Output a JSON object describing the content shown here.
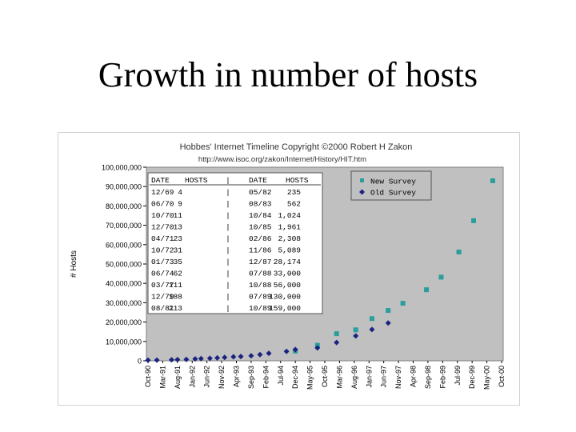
{
  "slide": {
    "title": "Growth in number of hosts"
  },
  "chart_data": {
    "type": "scatter",
    "title": "Hobbes' Internet Timeline Copyright ©2000 Robert H Zakon",
    "subtitle": "http://www.isoc.org/zakon/Internet/History/HIT.htm",
    "ylabel": "# Hosts",
    "xlabel": "",
    "ylim": [
      0,
      100000000
    ],
    "yticks": [
      "0",
      "10,000,000",
      "20,000,000",
      "30,000,000",
      "40,000,000",
      "50,000,000",
      "60,000,000",
      "70,000,000",
      "80,000,000",
      "90,000,000",
      "100,000,000"
    ],
    "ytick_values": [
      0,
      10000000,
      20000000,
      30000000,
      40000000,
      50000000,
      60000000,
      70000000,
      80000000,
      90000000,
      100000000
    ],
    "xticks": [
      "Oct-90",
      "Mar-91",
      "Aug-91",
      "Jan-92",
      "Jun-92",
      "Nov-92",
      "Apr-93",
      "Sep-93",
      "Feb-94",
      "Jul-94",
      "Dec-94",
      "May-95",
      "Oct-95",
      "Mar-96",
      "Aug-96",
      "Jan-97",
      "Jun-97",
      "Nov-97",
      "Apr-98",
      "Sep-98",
      "Feb-99",
      "Jul-99",
      "Dec-99",
      "May-00",
      "Oct-00"
    ],
    "legend": {
      "position": "top-right",
      "entries": [
        "New Survey",
        "Old Survey"
      ]
    },
    "grid": false,
    "series": [
      {
        "name": "New Survey",
        "marker": "square",
        "color": "#2a9d9d",
        "points": [
          {
            "x": 10.0,
            "y": 5000000
          },
          {
            "x": 11.5,
            "y": 8000000
          },
          {
            "x": 12.8,
            "y": 14000000
          },
          {
            "x": 14.1,
            "y": 16000000
          },
          {
            "x": 15.2,
            "y": 21800000
          },
          {
            "x": 16.3,
            "y": 26000000
          },
          {
            "x": 17.3,
            "y": 29700000
          },
          {
            "x": 18.9,
            "y": 36700000
          },
          {
            "x": 19.9,
            "y": 43200000
          },
          {
            "x": 21.1,
            "y": 56200000
          },
          {
            "x": 22.1,
            "y": 72400000
          },
          {
            "x": 23.4,
            "y": 93000000
          }
        ]
      },
      {
        "name": "Old Survey",
        "marker": "diamond",
        "color": "#1a237e",
        "points": [
          {
            "x": 0.0,
            "y": 313000
          },
          {
            "x": 0.6,
            "y": 376000
          },
          {
            "x": 1.6,
            "y": 535000
          },
          {
            "x": 2.0,
            "y": 617000
          },
          {
            "x": 2.6,
            "y": 727000
          },
          {
            "x": 3.2,
            "y": 992000
          },
          {
            "x": 3.6,
            "y": 1136000
          },
          {
            "x": 4.2,
            "y": 1313000
          },
          {
            "x": 4.7,
            "y": 1486000
          },
          {
            "x": 5.2,
            "y": 1776000
          },
          {
            "x": 5.8,
            "y": 2056000
          },
          {
            "x": 6.3,
            "y": 2217000
          },
          {
            "x": 7.0,
            "y": 2600000
          },
          {
            "x": 7.6,
            "y": 3200000
          },
          {
            "x": 8.2,
            "y": 3864000
          },
          {
            "x": 9.4,
            "y": 4852000
          },
          {
            "x": 10.0,
            "y": 5846000
          },
          {
            "x": 11.5,
            "y": 6642000
          },
          {
            "x": 12.8,
            "y": 9472000
          },
          {
            "x": 14.1,
            "y": 12881000
          },
          {
            "x": 15.2,
            "y": 16146000
          },
          {
            "x": 16.3,
            "y": 19540000
          }
        ]
      }
    ]
  },
  "inset_table": {
    "headers": [
      "DATE",
      "HOSTS",
      "|",
      "DATE",
      "HOSTS"
    ],
    "rows": [
      [
        "12/69",
        "4",
        "|",
        "05/82",
        "235"
      ],
      [
        "06/70",
        "9",
        "|",
        "08/83",
        "562"
      ],
      [
        "10/70",
        "11",
        "|",
        "10/84",
        "1,024"
      ],
      [
        "12/70",
        "13",
        "|",
        "10/85",
        "1,961"
      ],
      [
        "04/71",
        "23",
        "|",
        "02/86",
        "2,308"
      ],
      [
        "10/72",
        "31",
        "|",
        "11/86",
        "5,089"
      ],
      [
        "01/73",
        "35",
        "|",
        "12/87",
        "28,174"
      ],
      [
        "06/74",
        "62",
        "|",
        "07/88",
        "33,000"
      ],
      [
        "03/77",
        "111",
        "|",
        "10/88",
        "56,000"
      ],
      [
        "12/79",
        "188",
        "|",
        "07/89",
        "130,000"
      ],
      [
        "08/81",
        "213",
        "|",
        "10/89",
        "159,000"
      ]
    ]
  }
}
